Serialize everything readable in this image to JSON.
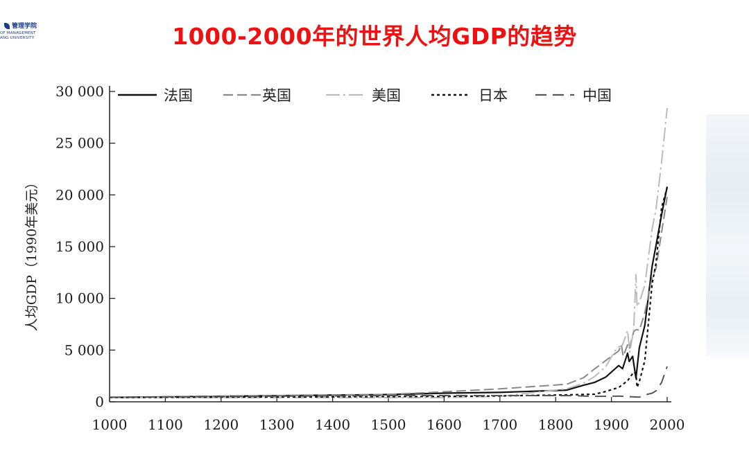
{
  "header": {
    "logo_cn": "管理学院",
    "logo_en_1": "OF MANAGEMENT",
    "logo_en_2": "ANG UNIVERSITY",
    "title": "1000-2000年的世界人均GDP的趋势"
  },
  "chart_data": {
    "type": "line",
    "title": "1000-2000年的世界人均GDP的趋势",
    "xlabel": "",
    "ylabel": "人均GDP（1990年美元）",
    "xlim": [
      1000,
      2000
    ],
    "ylim": [
      0,
      30000
    ],
    "x_ticks": [
      1000,
      1100,
      1200,
      1300,
      1400,
      1500,
      1600,
      1700,
      1800,
      1900,
      2000
    ],
    "x_tick_labels": [
      "1000",
      "1100",
      "1200",
      "1300",
      "1400",
      "1500",
      "1600",
      "1700",
      "1800",
      "1900",
      "2000"
    ],
    "y_ticks": [
      0,
      5000,
      10000,
      15000,
      20000,
      25000,
      30000
    ],
    "y_tick_labels": [
      "0",
      "5 000",
      "10 000",
      "15 000",
      "20 000",
      "25 000",
      "30 000"
    ],
    "legend_position": "top",
    "grid": false,
    "series": [
      {
        "name": "法国",
        "color": "#111111",
        "dash": "solid",
        "width": 2.2,
        "points": [
          [
            1000,
            425
          ],
          [
            1500,
            700
          ],
          [
            1600,
            840
          ],
          [
            1700,
            910
          ],
          [
            1820,
            1135
          ],
          [
            1850,
            1600
          ],
          [
            1870,
            1880
          ],
          [
            1890,
            2400
          ],
          [
            1913,
            3500
          ],
          [
            1920,
            3200
          ],
          [
            1929,
            4700
          ],
          [
            1932,
            3900
          ],
          [
            1938,
            4400
          ],
          [
            1944,
            2300
          ],
          [
            1950,
            5200
          ],
          [
            1960,
            7400
          ],
          [
            1973,
            13100
          ],
          [
            1980,
            15100
          ],
          [
            1990,
            18100
          ],
          [
            2000,
            20800
          ]
        ]
      },
      {
        "name": "英国",
        "color": "#888888",
        "dash": "14,6",
        "width": 2.0,
        "points": [
          [
            1000,
            400
          ],
          [
            1500,
            714
          ],
          [
            1600,
            974
          ],
          [
            1700,
            1250
          ],
          [
            1820,
            1700
          ],
          [
            1850,
            2330
          ],
          [
            1870,
            3190
          ],
          [
            1890,
            4000
          ],
          [
            1913,
            4920
          ],
          [
            1918,
            5500
          ],
          [
            1921,
            4400
          ],
          [
            1929,
            5500
          ],
          [
            1932,
            5100
          ],
          [
            1940,
            6800
          ],
          [
            1945,
            7000
          ],
          [
            1950,
            6900
          ],
          [
            1960,
            8600
          ],
          [
            1973,
            12000
          ],
          [
            1980,
            12900
          ],
          [
            1990,
            16400
          ],
          [
            2000,
            19800
          ]
        ]
      },
      {
        "name": "美国",
        "color": "#bbbbbb",
        "dash": "20,5,3,5",
        "width": 2.0,
        "points": [
          [
            1000,
            400
          ],
          [
            1500,
            400
          ],
          [
            1600,
            400
          ],
          [
            1700,
            527
          ],
          [
            1820,
            1257
          ],
          [
            1850,
            1800
          ],
          [
            1870,
            2445
          ],
          [
            1890,
            3400
          ],
          [
            1906,
            4900
          ],
          [
            1913,
            5300
          ],
          [
            1920,
            5500
          ],
          [
            1929,
            6900
          ],
          [
            1933,
            4800
          ],
          [
            1940,
            7000
          ],
          [
            1944,
            12300
          ],
          [
            1946,
            9200
          ],
          [
            1950,
            9600
          ],
          [
            1960,
            11300
          ],
          [
            1973,
            16700
          ],
          [
            1980,
            18600
          ],
          [
            1990,
            23200
          ],
          [
            2000,
            28400
          ]
        ]
      },
      {
        "name": "日本",
        "color": "#111111",
        "dash": "4,4",
        "width": 2.2,
        "points": [
          [
            1000,
            425
          ],
          [
            1500,
            500
          ],
          [
            1600,
            520
          ],
          [
            1700,
            570
          ],
          [
            1820,
            669
          ],
          [
            1870,
            737
          ],
          [
            1890,
            1000
          ],
          [
            1913,
            1387
          ],
          [
            1929,
            2026
          ],
          [
            1940,
            2874
          ],
          [
            1944,
            2700
          ],
          [
            1946,
            1400
          ],
          [
            1950,
            1921
          ],
          [
            1960,
            3986
          ],
          [
            1973,
            11400
          ],
          [
            1980,
            13400
          ],
          [
            1990,
            18800
          ],
          [
            2000,
            20700
          ]
        ]
      },
      {
        "name": "中国",
        "color": "#555555",
        "dash": "16,9",
        "width": 2.0,
        "points": [
          [
            1000,
            450
          ],
          [
            1500,
            600
          ],
          [
            1600,
            600
          ],
          [
            1700,
            600
          ],
          [
            1820,
            600
          ],
          [
            1870,
            530
          ],
          [
            1913,
            552
          ],
          [
            1950,
            448
          ],
          [
            1960,
            660
          ],
          [
            1973,
            838
          ],
          [
            1980,
            1060
          ],
          [
            1990,
            1870
          ],
          [
            2000,
            3425
          ]
        ]
      }
    ]
  }
}
